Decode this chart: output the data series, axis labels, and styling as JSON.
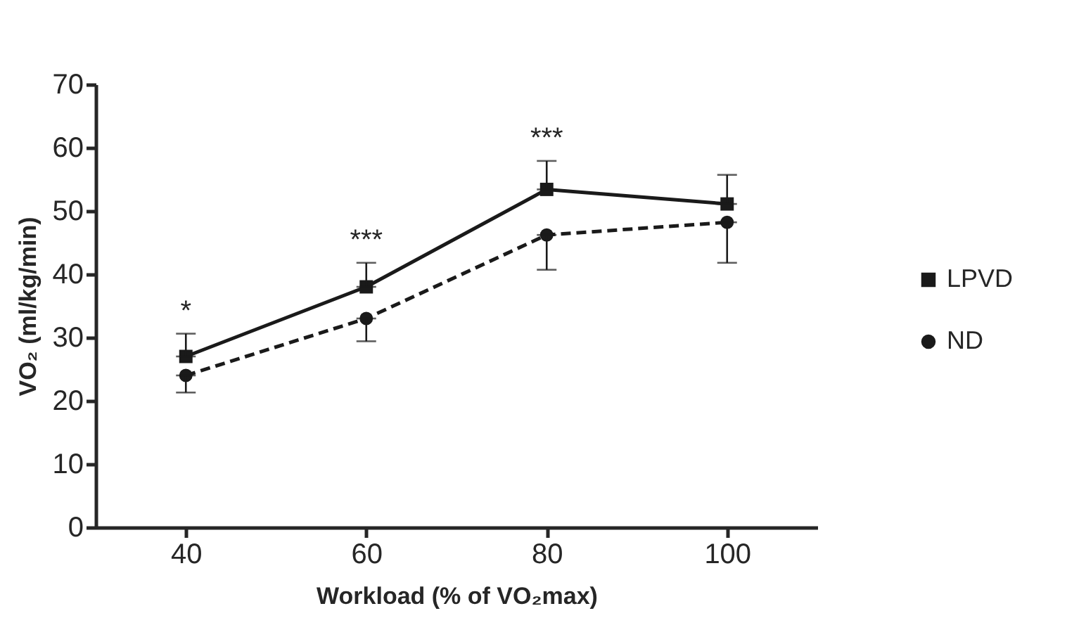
{
  "chart_data": {
    "type": "line",
    "xlabel": "Workload (% of VO₂max)",
    "ylabel": "VO₂ (ml/kg/min)",
    "categories": [
      "40",
      "60",
      "80",
      "100"
    ],
    "ylim": [
      0,
      70
    ],
    "yticks": [
      0,
      10,
      20,
      30,
      40,
      50,
      60,
      70
    ],
    "grid": false,
    "legend": "right",
    "series": [
      {
        "name": "LPVD",
        "color": "#1a1a1a",
        "marker": "square",
        "line_style": "solid",
        "values": [
          27,
          38,
          53.4,
          51.1
        ],
        "errors": [
          [
            27,
            30.6
          ],
          [
            38,
            41.8
          ],
          [
            53.4,
            57.9
          ],
          [
            51.1,
            55.7
          ]
        ]
      },
      {
        "name": "ND",
        "color": "#1a1a1a",
        "marker": "circle",
        "line_style": "dashed",
        "values": [
          24,
          33,
          46.2,
          48.2
        ],
        "errors": [
          [
            21.3,
            24
          ],
          [
            29.4,
            33
          ],
          [
            40.7,
            46.2
          ],
          [
            41.8,
            48.2
          ]
        ]
      }
    ],
    "annotations": [
      {
        "text": "*",
        "x": "40",
        "y": 30.6
      },
      {
        "text": "***",
        "x": "60",
        "y": 41.8
      },
      {
        "text": "***",
        "x": "80",
        "y": 57.9
      }
    ]
  }
}
